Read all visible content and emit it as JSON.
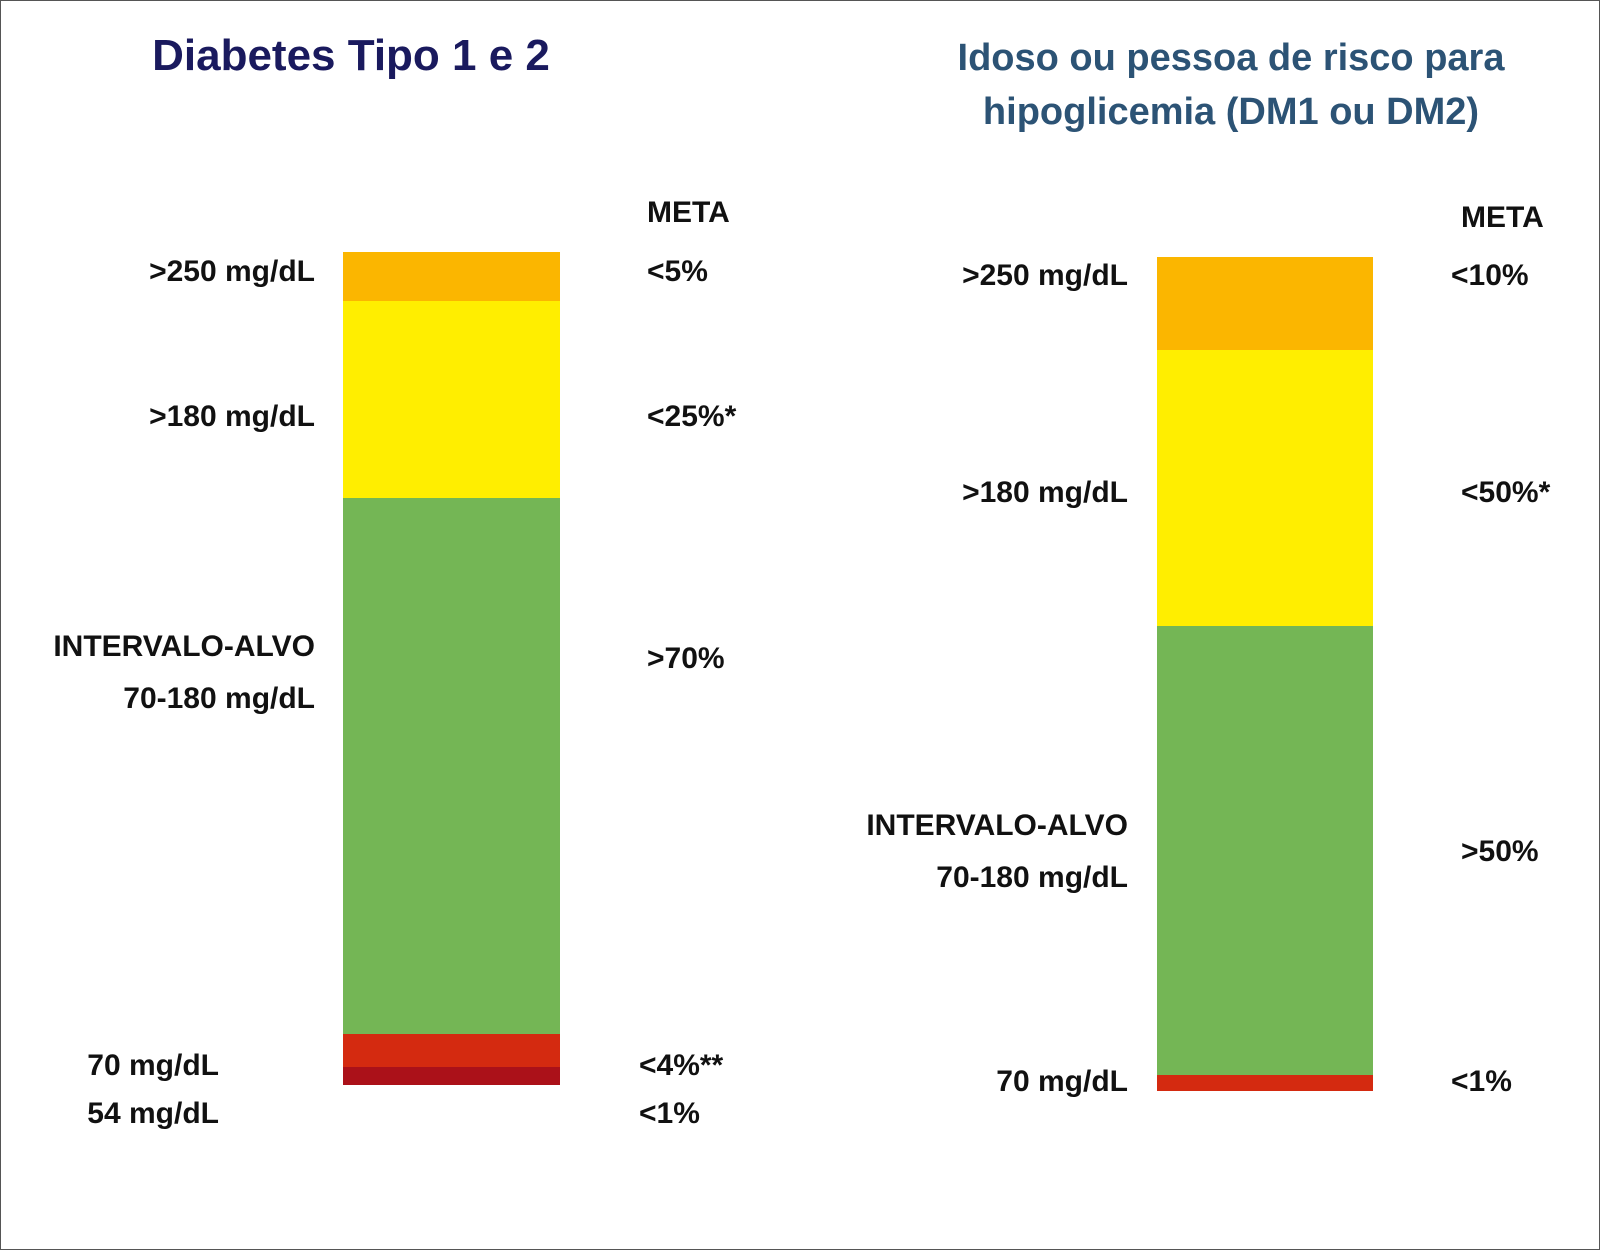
{
  "chart_data": [
    {
      "type": "stacked-bar",
      "title": "Diabetes Tipo 1 e 2",
      "meta_header": "META",
      "segments": [
        {
          "threshold_label": "54 mg/dL",
          "meta": "<1%",
          "color": "#ab1119"
        },
        {
          "threshold_label": "70 mg/dL",
          "meta": "<4%**",
          "color": "#d42a10"
        },
        {
          "threshold_label": "70-180 mg/dL",
          "range_title": "INTERVALO-ALVO",
          "meta": ">70%",
          "color": "#74b655"
        },
        {
          "threshold_label": ">180 mg/dL",
          "meta": "<25%*",
          "color": "#ffee00"
        },
        {
          "threshold_label": ">250 mg/dL",
          "meta": "<5%",
          "color": "#fbb600"
        }
      ]
    },
    {
      "type": "stacked-bar",
      "title": "Idoso ou pessoa de risco para hipoglicemia (DM1 ou DM2)",
      "meta_header": "META",
      "segments": [
        {
          "threshold_label": "70 mg/dL",
          "meta": "<1%",
          "color": "#d42a10"
        },
        {
          "threshold_label": "70-180 mg/dL",
          "range_title": "INTERVALO-ALVO",
          "meta": ">50%",
          "color": "#74b655"
        },
        {
          "threshold_label": ">180 mg/dL",
          "meta": "<50%*",
          "color": "#ffee00"
        },
        {
          "threshold_label": ">250 mg/dL",
          "meta": "<10%",
          "color": "#fbb600"
        }
      ]
    }
  ]
}
